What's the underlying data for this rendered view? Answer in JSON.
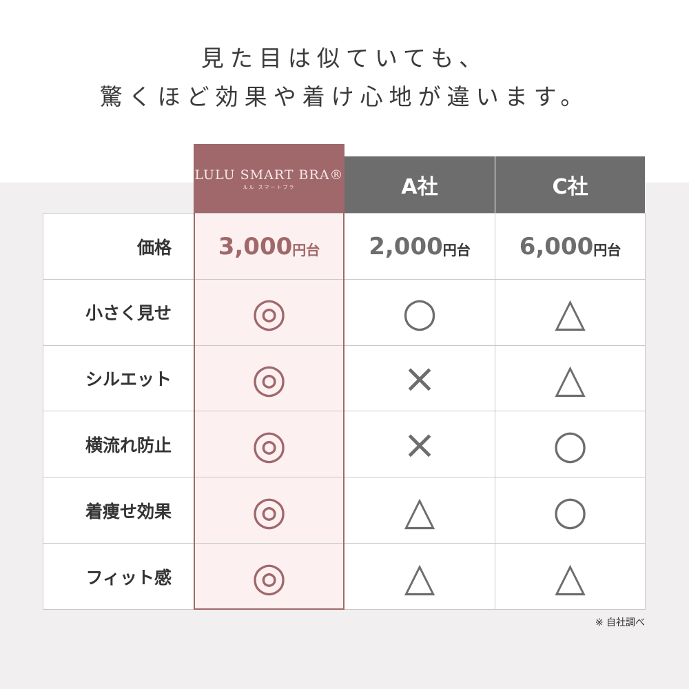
{
  "header": {
    "line1": "見た目は似ていても、",
    "line2": "驚くほど効果や着け心地が違います。"
  },
  "table": {
    "columns": [
      {
        "logo": "LULU SMART BRA®",
        "logo_sub": "ルル スマートブラ"
      },
      {
        "name": "A社"
      },
      {
        "name": "C社"
      }
    ],
    "price_row": {
      "label": "価格",
      "cells": [
        {
          "amount": "3,000",
          "unit": "円台"
        },
        {
          "amount": "2,000",
          "unit": "円台"
        },
        {
          "amount": "6,000",
          "unit": "円台"
        }
      ]
    },
    "rows": [
      {
        "label": "小さく見せ",
        "cells": [
          "◎",
          "○",
          "△"
        ]
      },
      {
        "label": "シルエット",
        "cells": [
          "◎",
          "×",
          "△"
        ]
      },
      {
        "label": "横流れ防止",
        "cells": [
          "◎",
          "×",
          "○"
        ]
      },
      {
        "label": "着痩せ効果",
        "cells": [
          "◎",
          "△",
          "○"
        ]
      },
      {
        "label": "フィット感",
        "cells": [
          "◎",
          "△",
          "△"
        ]
      }
    ]
  },
  "footnote": "※ 自社調べ"
}
